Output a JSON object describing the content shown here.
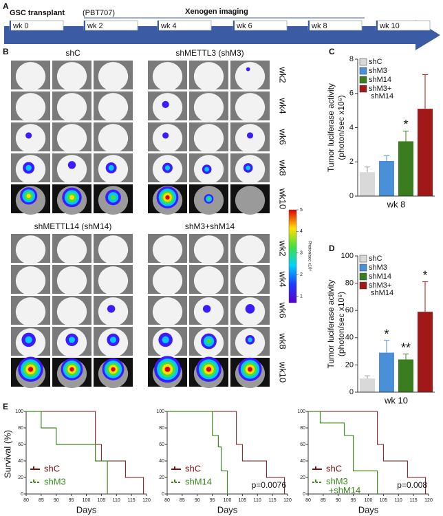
{
  "panel_a": {
    "label": "A",
    "title": "GSC transplant",
    "subtitle": "(PBT707)",
    "imaging": "Xenogen imaging",
    "weeks": [
      "wk 0",
      "wk 2",
      "wk 4",
      "wk 6",
      "wk 8",
      "wk 10"
    ]
  },
  "panel_b": {
    "label": "B",
    "groups": [
      "shC",
      "shMETTL3 (shM3)",
      "shMETTL14 (shM14)",
      "shM3+shM14"
    ],
    "rows": [
      "wk2",
      "wk4",
      "wk6",
      "wk8",
      "wk10"
    ],
    "colorbar": {
      "label": "Photon/sec x10⁶",
      "lim": [
        0.7,
        5
      ],
      "ticks": [
        1,
        2,
        3,
        4,
        5
      ]
    }
  },
  "chart_data": [
    {
      "type": "bar",
      "label": "C",
      "ylabel": [
        "Tumor luciferase activity",
        "(photon/sec x10⁶)"
      ],
      "xlabel": "wk 8",
      "categories": [
        "shC",
        "shM3",
        "shM14",
        "shM3+ shM14"
      ],
      "values": [
        1.4,
        2.05,
        3.2,
        5.1
      ],
      "errors": [
        0.3,
        0.3,
        0.6,
        2.0
      ],
      "annotations": [
        null,
        null,
        "*",
        null
      ],
      "colors": [
        "#d9d9d9",
        "#4a90d9",
        "#3a7d1e",
        "#a01818"
      ],
      "ylim": [
        0,
        8
      ],
      "yticks": [
        0,
        2,
        4,
        6,
        8
      ]
    },
    {
      "type": "bar",
      "label": "D",
      "ylabel": [
        "Tumor luciferase activity",
        "(photon/sec x10⁶)"
      ],
      "xlabel": "wk 10",
      "categories": [
        "shC",
        "shM3",
        "shM14",
        "shM3+ shM14"
      ],
      "values": [
        10,
        29,
        24,
        59
      ],
      "errors": [
        2,
        9,
        4,
        22
      ],
      "annotations": [
        null,
        "*",
        "**",
        "*"
      ],
      "colors": [
        "#d9d9d9",
        "#4a90d9",
        "#3a7d1e",
        "#a01818"
      ],
      "ylim": [
        0,
        100
      ],
      "yticks": [
        0,
        20,
        40,
        60,
        80,
        100
      ]
    },
    {
      "type": "step",
      "label": "E",
      "ylabel": "Survival (%)",
      "xlabel": "Days",
      "annotation": null,
      "xlim": [
        80,
        120
      ],
      "xticks": [
        80,
        85,
        90,
        95,
        100,
        105,
        110,
        115,
        120
      ],
      "ylim": [
        0,
        100
      ],
      "yticks": [
        0,
        20,
        40,
        60,
        80,
        100
      ],
      "series": [
        {
          "name": "shC",
          "color": "#7a1010",
          "x": [
            80,
            103,
            105,
            113,
            119
          ],
          "values": [
            100,
            60,
            40,
            20,
            0
          ]
        },
        {
          "name": "shM3",
          "color": "#3a8a1e",
          "x": [
            80,
            85,
            90,
            103,
            107
          ],
          "values": [
            100,
            80,
            60,
            40,
            0
          ]
        }
      ]
    },
    {
      "type": "step",
      "label": null,
      "ylabel": null,
      "xlabel": "Days",
      "annotation": "p=0.0076",
      "xlim": [
        80,
        120
      ],
      "xticks": [
        80,
        85,
        90,
        95,
        100,
        105,
        110,
        115,
        120
      ],
      "ylim": [
        0,
        100
      ],
      "yticks": [
        0,
        20,
        40,
        60,
        80,
        100
      ],
      "series": [
        {
          "name": "shC",
          "color": "#7a1010",
          "x": [
            80,
            103,
            105,
            113,
            119
          ],
          "values": [
            100,
            60,
            40,
            20,
            0
          ]
        },
        {
          "name": "shM14",
          "color": "#3a8a1e",
          "x": [
            80,
            95,
            97,
            98,
            100
          ],
          "values": [
            100,
            71,
            57,
            28,
            0
          ]
        }
      ]
    },
    {
      "type": "step",
      "label": null,
      "ylabel": null,
      "xlabel": "Days",
      "annotation": "p=0.008",
      "xlim": [
        80,
        120
      ],
      "xticks": [
        80,
        85,
        90,
        95,
        100,
        105,
        110,
        115,
        120
      ],
      "ylim": [
        0,
        100
      ],
      "yticks": [
        0,
        20,
        40,
        60,
        80,
        100
      ],
      "series": [
        {
          "name": "shC",
          "color": "#7a1010",
          "x": [
            80,
            103,
            105,
            113,
            119
          ],
          "values": [
            100,
            60,
            40,
            20,
            0
          ]
        },
        {
          "name": "shM3 +shM14",
          "color": "#3a8a1e",
          "x": [
            80,
            84,
            92,
            95,
            103
          ],
          "values": [
            100,
            86,
            71,
            28,
            0
          ]
        }
      ]
    }
  ]
}
